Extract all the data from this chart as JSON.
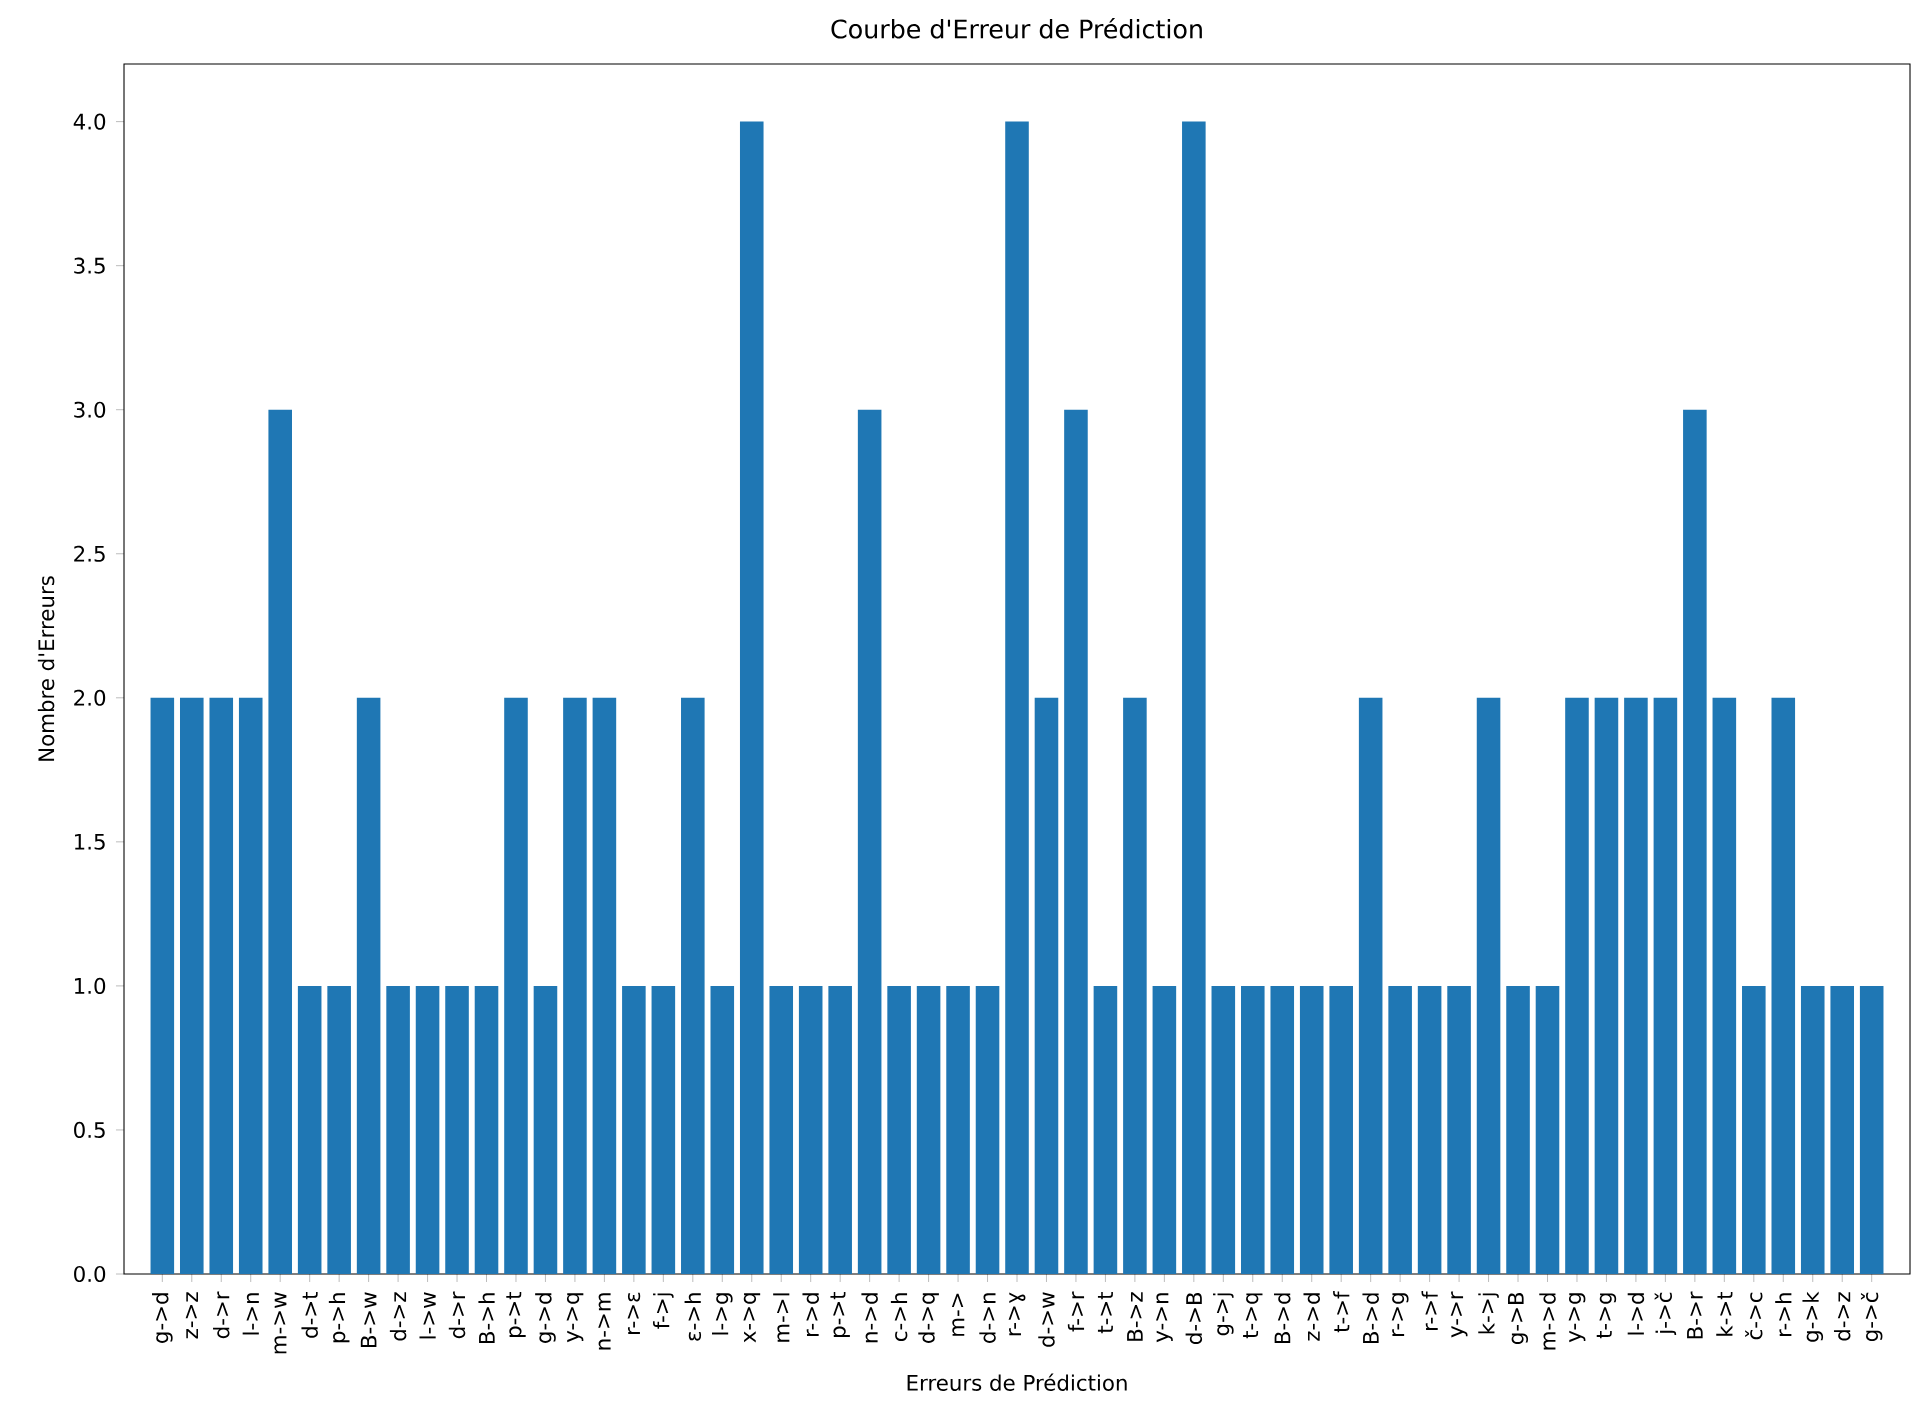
{
  "chart_data": {
    "type": "bar",
    "title": "Courbe d'Erreur de Prédiction",
    "xlabel": "Erreurs de Prédiction",
    "ylabel": "Nombre d'Erreurs",
    "categories": [
      "g->d",
      "z->z",
      "d->r",
      "l->n",
      "m->w",
      "d->t",
      "p->h",
      "B->w",
      "d->z",
      "l->w",
      "d->r",
      "B->h",
      "p->t",
      "g->d",
      "y->q",
      "n->m",
      "r->ɛ",
      "f->j",
      "ɛ->h",
      "l->g",
      "x->q",
      "m->l",
      "r->d",
      "p->t",
      "n->d",
      "c->h",
      "d->q",
      "m->",
      "d->n",
      "r->ɣ",
      "d->w",
      "f->r",
      "t->t",
      "B->z",
      "y->n",
      "d->B",
      "g->j",
      "t->q",
      "B->d",
      "z->d",
      "t->f",
      "B->d",
      "r->g",
      "r->f",
      "y->r",
      "k->j",
      "g->B",
      "m->d",
      "y->g",
      "t->g",
      "l->d",
      "j->č",
      "B->r",
      "k->t",
      "č->c",
      "r->h",
      "g->k",
      "d->z",
      "g->č"
    ],
    "values": [
      2,
      2,
      2,
      2,
      3,
      1,
      1,
      2,
      1,
      1,
      1,
      1,
      2,
      1,
      2,
      2,
      1,
      1,
      2,
      1,
      4,
      1,
      1,
      1,
      3,
      1,
      1,
      1,
      1,
      4,
      2,
      3,
      1,
      2,
      1,
      4,
      1,
      1,
      1,
      1,
      1,
      2,
      1,
      1,
      1,
      2,
      1,
      1,
      2,
      2,
      2,
      2,
      3,
      2,
      1,
      2,
      1,
      1,
      1
    ],
    "color": "#1f77b4",
    "ylim": [
      0,
      4.2
    ],
    "yticks": [
      {
        "value": 0,
        "label": "0.0"
      },
      {
        "value": 0.5,
        "label": "0.5"
      },
      {
        "value": 1,
        "label": "1.0"
      },
      {
        "value": 1.5,
        "label": "1.5"
      },
      {
        "value": 2,
        "label": "2.0"
      },
      {
        "value": 2.5,
        "label": "2.5"
      },
      {
        "value": 3,
        "label": "3.0"
      },
      {
        "value": 3.5,
        "label": "3.5"
      },
      {
        "value": 4,
        "label": "4.0"
      }
    ]
  }
}
